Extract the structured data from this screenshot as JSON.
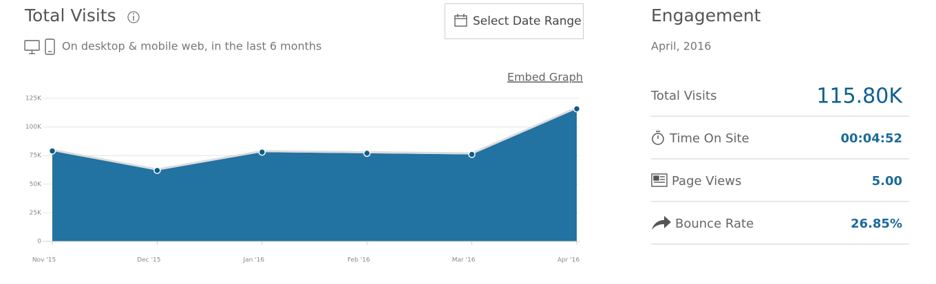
{
  "header": {
    "title": "Total Visits",
    "subtitle": "On desktop & mobile web, in the last 6 months",
    "button": "Select Date Range",
    "embed_link": "Embed Graph"
  },
  "chart_data": {
    "type": "area",
    "categories": [
      "Nov '15",
      "Dec '15",
      "Jan '16",
      "Feb '16",
      "Mar '16",
      "Apr '16"
    ],
    "values": [
      79000,
      62000,
      78000,
      77000,
      76000,
      115800
    ],
    "color": "#2272a2",
    "ylim": [
      0,
      125000
    ],
    "yticks": [
      0,
      {
        "value": 25000,
        "label": "25K"
      },
      {
        "value": 50000,
        "label": "50K"
      },
      {
        "value": 75000,
        "label": "75K"
      },
      {
        "value": 100000,
        "label": "100K"
      },
      {
        "value": 125000,
        "label": "125K"
      }
    ],
    "grid": true
  },
  "engagement": {
    "title": "Engagement",
    "period": "April, 2016",
    "rows": [
      {
        "label": "Total Visits",
        "value": "115.80K"
      },
      {
        "label": "Time On Site",
        "value": "00:04:52"
      },
      {
        "label": "Page Views",
        "value": "5.00"
      },
      {
        "label": "Bounce Rate",
        "value": "26.85%"
      }
    ]
  }
}
